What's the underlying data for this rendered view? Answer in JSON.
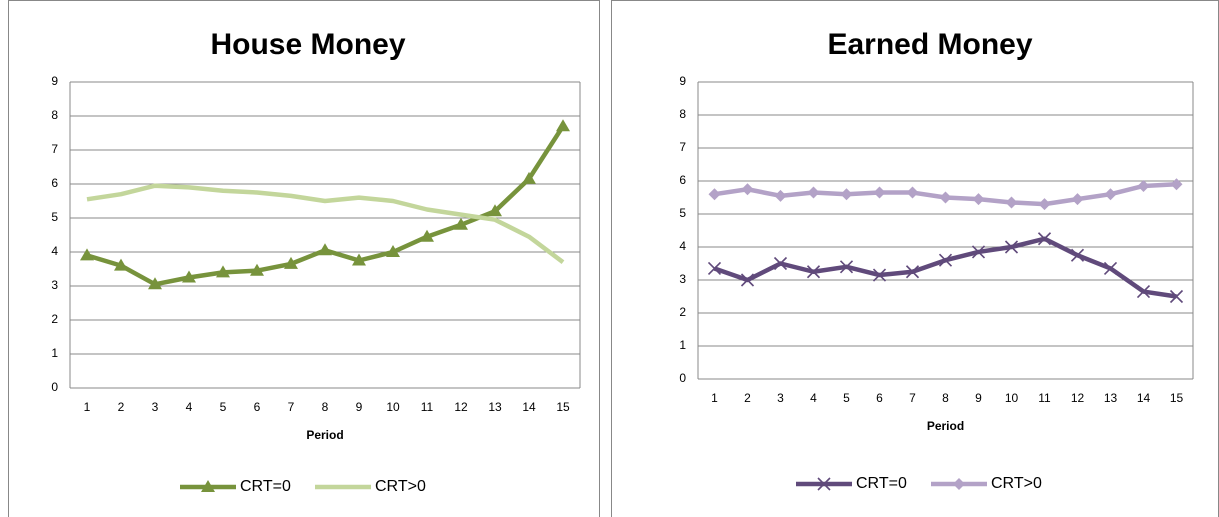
{
  "chart_data": [
    {
      "type": "line",
      "title": "House Money",
      "xlabel": "Period",
      "categories": [
        1,
        2,
        3,
        4,
        5,
        6,
        7,
        8,
        9,
        10,
        11,
        12,
        13,
        14,
        15
      ],
      "series": [
        {
          "name": "CRT=0",
          "color": "#77933c",
          "marker": "triangle",
          "values": [
            3.9,
            3.6,
            3.05,
            3.25,
            3.4,
            3.45,
            3.65,
            4.05,
            3.75,
            4.0,
            4.45,
            4.8,
            5.2,
            6.15,
            7.7
          ]
        },
        {
          "name": "CRT>0",
          "color": "#c3d69b",
          "marker": "none",
          "values": [
            5.55,
            5.7,
            5.95,
            5.9,
            5.8,
            5.75,
            5.65,
            5.5,
            5.6,
            5.5,
            5.25,
            5.1,
            4.95,
            4.45,
            3.7
          ]
        }
      ],
      "ylim": [
        0,
        9
      ],
      "yticks": [
        0,
        1,
        2,
        3,
        4,
        5,
        6,
        7,
        8,
        9
      ],
      "grid": true,
      "legend": "bottom"
    },
    {
      "type": "line",
      "title": "Earned Money",
      "xlabel": "Period",
      "categories": [
        1,
        2,
        3,
        4,
        5,
        6,
        7,
        8,
        9,
        10,
        11,
        12,
        13,
        14,
        15
      ],
      "series": [
        {
          "name": "CRT=0",
          "color": "#604a7b",
          "marker": "x",
          "values": [
            3.35,
            3.0,
            3.5,
            3.25,
            3.4,
            3.15,
            3.25,
            3.6,
            3.85,
            4.0,
            4.25,
            3.75,
            3.35,
            2.65,
            2.5
          ]
        },
        {
          "name": "CRT>0",
          "color": "#b3a2c7",
          "marker": "diamond",
          "values": [
            5.6,
            5.75,
            5.55,
            5.65,
            5.6,
            5.65,
            5.65,
            5.5,
            5.45,
            5.35,
            5.3,
            5.45,
            5.6,
            5.85,
            5.9
          ]
        }
      ],
      "ylim": [
        0,
        9
      ],
      "yticks": [
        0,
        1,
        2,
        3,
        4,
        5,
        6,
        7,
        8,
        9
      ],
      "grid": true,
      "legend": "bottom"
    }
  ]
}
